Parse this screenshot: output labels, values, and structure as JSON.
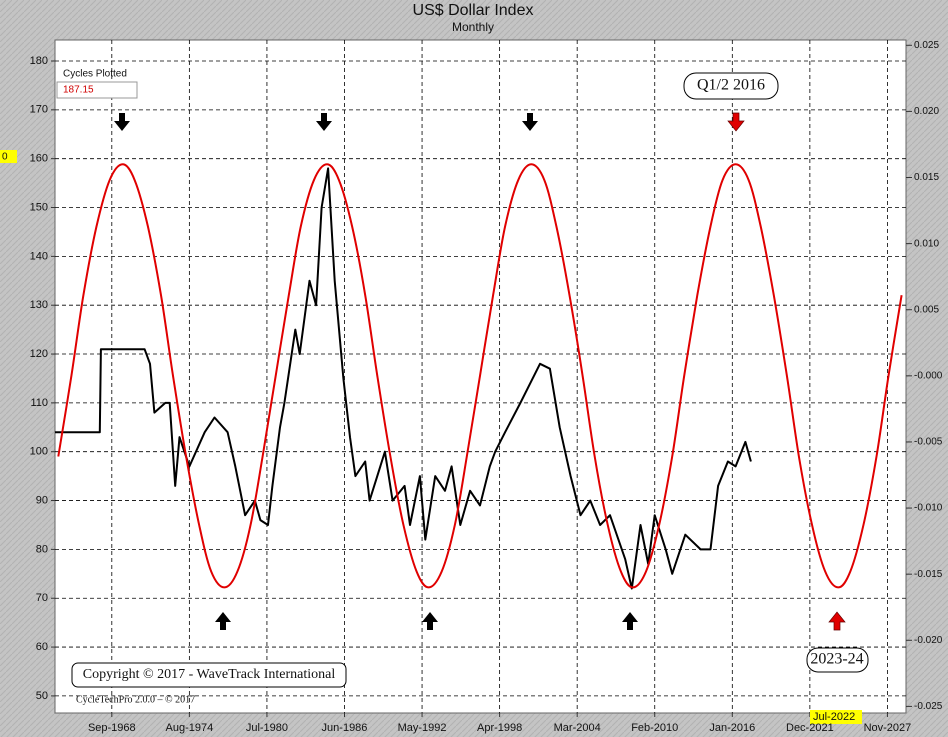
{
  "chart_data": {
    "type": "line",
    "title": "US$ Dollar Index",
    "subtitle": "Monthly",
    "grid": true,
    "xlim": [
      "1964-05",
      "2029-04"
    ],
    "xticks": [
      {
        "value": "1968-09",
        "label": "Sep-1968"
      },
      {
        "value": "1974-08",
        "label": "Aug-1974"
      },
      {
        "value": "1980-07",
        "label": "Jul-1980"
      },
      {
        "value": "1986-06",
        "label": "Jun-1986"
      },
      {
        "value": "1992-05",
        "label": "May-1992"
      },
      {
        "value": "1998-04",
        "label": "Apr-1998"
      },
      {
        "value": "2004-03",
        "label": "Mar-2004"
      },
      {
        "value": "2010-02",
        "label": "Feb-2010"
      },
      {
        "value": "2016-01",
        "label": "Jan-2016"
      },
      {
        "value": "2021-12",
        "label": "Dec-2021"
      },
      {
        "value": "2027-11",
        "label": "Nov-2027"
      }
    ],
    "ylim": [
      46.5,
      184.3
    ],
    "yticks": [
      50,
      60,
      70,
      80,
      90,
      100,
      110,
      120,
      130,
      140,
      150,
      160,
      170,
      180
    ],
    "y2lim": [
      -0.0255,
      0.0254
    ],
    "y2ticks": [
      {
        "value": 0.025,
        "label": "0.025"
      },
      {
        "value": 0.02,
        "label": "0.020"
      },
      0.015,
      {
        "value": 0.01,
        "label": "0.010"
      },
      0.005,
      {
        "value": 0,
        "label": "-0.000"
      },
      -0.005,
      {
        "value": -0.01,
        "label": "-0.010"
      },
      -0.015,
      {
        "value": -0.02,
        "label": "-0.020"
      },
      -0.025
    ],
    "series": [
      {
        "name": "US$ Dollar Index",
        "color": "#000000",
        "x": [
          "1964-05",
          "1967-10",
          "1967-11",
          "1971-03",
          "1971-08",
          "1971-12",
          "1972-10",
          "1973-02",
          "1973-07",
          "1973-11",
          "1974-08",
          "1975-10",
          "1976-07",
          "1977-07",
          "1978-02",
          "1978-11",
          "1979-08",
          "1980-01",
          "1980-08",
          "1980-12",
          "1981-07",
          "1981-11",
          "1982-09",
          "1983-01",
          "1983-10",
          "1984-04",
          "1984-09",
          "1985-03",
          "1985-09",
          "1986-05",
          "1986-11",
          "1987-04",
          "1988-01",
          "1988-05",
          "1989-07",
          "1990-02",
          "1991-01",
          "1991-06",
          "1992-03",
          "1992-08",
          "1993-05",
          "1994-02",
          "1994-08",
          "1995-04",
          "1996-01",
          "1996-10",
          "1997-07",
          "1997-12",
          "1998-09",
          "1999-11",
          "2001-05",
          "2002-02",
          "2002-11",
          "2003-09",
          "2004-06",
          "2005-03",
          "2005-12",
          "2006-09",
          "2007-11",
          "2008-05",
          "2009-01",
          "2009-08",
          "2010-02",
          "2010-12",
          "2011-06",
          "2012-06",
          "2013-08",
          "2014-05",
          "2014-12",
          "2015-09",
          "2016-04",
          "2017-01",
          "2017-06"
        ],
        "values": [
          104,
          104,
          121,
          121,
          118,
          108,
          110,
          110,
          93,
          103,
          97,
          104,
          107,
          104,
          97,
          87,
          90,
          86,
          85,
          93,
          105,
          110,
          125,
          120,
          135,
          130,
          150,
          158,
          135,
          115,
          103,
          95,
          98,
          90,
          100,
          90,
          93,
          85,
          95,
          82,
          95,
          92,
          97,
          85,
          92,
          89,
          97,
          100,
          104,
          110,
          118,
          117,
          105,
          95,
          87,
          90,
          85,
          87,
          78,
          72,
          85,
          77,
          87,
          80,
          75,
          83,
          80,
          80,
          93,
          98,
          97,
          102,
          98
        ]
      },
      {
        "color": "#e00000",
        "axis": "y2",
        "smooth": true,
        "x": [
          "1964-08",
          "1965-08",
          "1966-07",
          "1967-07",
          "1968-07",
          "1969-07",
          "1970-06",
          "1971-06",
          "1972-06",
          "1973-05",
          "1974-05",
          "1975-05",
          "1976-04",
          "1977-04",
          "1978-04",
          "1979-04",
          "1980-03",
          "1981-03",
          "1982-03",
          "1983-02",
          "1984-02",
          "1985-02",
          "1986-01",
          "1987-01",
          "1988-01",
          "1988-12",
          "1989-12",
          "1990-12",
          "1991-12",
          "1992-11",
          "1993-11",
          "1994-11",
          "1995-10",
          "1996-10",
          "1997-10",
          "1998-09",
          "1999-09",
          "2000-09",
          "2001-09",
          "2002-08",
          "2003-08",
          "2004-08",
          "2005-07",
          "2006-07",
          "2007-07",
          "2008-06",
          "2009-06",
          "2010-06",
          "2011-06",
          "2012-05",
          "2013-05",
          "2014-05",
          "2015-04",
          "2016-04",
          "2017-04",
          "2018-03",
          "2019-03",
          "2020-03",
          "2021-02",
          "2022-02",
          "2023-02",
          "2024-02",
          "2025-01",
          "2026-01",
          "2027-01",
          "2027-12",
          "2028-12"
        ],
        "values": [
          -0.0061,
          0,
          0.0061,
          0.0113,
          0.0148,
          0.016,
          0.0148,
          0.0113,
          0.0061,
          0,
          -0.0061,
          -0.0113,
          -0.0148,
          -0.016,
          -0.0148,
          -0.0113,
          -0.0061,
          0,
          0.0061,
          0.0113,
          0.0148,
          0.016,
          0.0148,
          0.0113,
          0.0061,
          0,
          -0.0061,
          -0.0113,
          -0.0148,
          -0.016,
          -0.0148,
          -0.0113,
          -0.0061,
          0,
          0.0061,
          0.0113,
          0.0148,
          0.016,
          0.0148,
          0.0113,
          0.0061,
          0,
          -0.0061,
          -0.0113,
          -0.0148,
          -0.016,
          -0.0148,
          -0.0113,
          -0.0061,
          0,
          0.0061,
          0.0113,
          0.0148,
          0.016,
          0.0148,
          0.0113,
          0.0061,
          0,
          -0.0061,
          -0.0113,
          -0.0148,
          -0.016,
          -0.0148,
          -0.0113,
          -0.0061,
          0,
          0.0061
        ]
      }
    ],
    "cycles_label": "Cycles Plotted",
    "cycles_value": 187.15,
    "annotations": [
      "Q1/2 2016",
      "2023-24",
      "Copyright © 2017 - WaveTrack International",
      "CycleTechPro 2.0.0 – © 2017"
    ],
    "cursor_y_label": "0",
    "cursor_x_label": "Jul-2022"
  }
}
